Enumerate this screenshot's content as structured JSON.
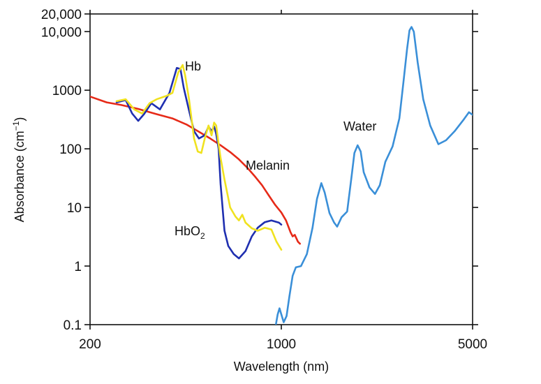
{
  "chart_data": {
    "type": "line",
    "title": "",
    "xlabel": "Wavelength (nm)",
    "ylabel": "Absorbance (cm⁻¹)",
    "x_scale": "log",
    "y_scale": "log",
    "xlim": [
      200,
      5000
    ],
    "ylim": [
      0.1,
      20000
    ],
    "grid": false,
    "legend": "none",
    "x_ticks": [
      {
        "value": 200,
        "label": "200"
      },
      {
        "value": 1000,
        "label": "1000"
      },
      {
        "value": 5000,
        "label": "5000"
      }
    ],
    "y_ticks": [
      {
        "value": 0.1,
        "label": "0.1"
      },
      {
        "value": 1,
        "label": "1"
      },
      {
        "value": 10,
        "label": "10"
      },
      {
        "value": 100,
        "label": "100"
      },
      {
        "value": 1000,
        "label": "1000"
      },
      {
        "value": 10000,
        "label": "10,000"
      },
      {
        "value": 20000,
        "label": "20,000"
      }
    ],
    "series": [
      {
        "name": "Water",
        "color": "#3a8fd8",
        "points": [
          [
            940,
            0.07
          ],
          [
            955,
            0.1
          ],
          [
            970,
            0.15
          ],
          [
            985,
            0.19
          ],
          [
            1000,
            0.15
          ],
          [
            1020,
            0.11
          ],
          [
            1045,
            0.14
          ],
          [
            1070,
            0.3
          ],
          [
            1100,
            0.68
          ],
          [
            1130,
            0.95
          ],
          [
            1180,
            1.0
          ],
          [
            1240,
            1.6
          ],
          [
            1300,
            4.5
          ],
          [
            1350,
            14
          ],
          [
            1400,
            26
          ],
          [
            1440,
            18
          ],
          [
            1500,
            8
          ],
          [
            1560,
            5.5
          ],
          [
            1600,
            4.7
          ],
          [
            1660,
            6.8
          ],
          [
            1740,
            8.5
          ],
          [
            1800,
            30
          ],
          [
            1850,
            85
          ],
          [
            1900,
            115
          ],
          [
            1950,
            90
          ],
          [
            2000,
            40
          ],
          [
            2100,
            22
          ],
          [
            2200,
            17
          ],
          [
            2290,
            24
          ],
          [
            2400,
            60
          ],
          [
            2550,
            110
          ],
          [
            2700,
            330
          ],
          [
            2800,
            1500
          ],
          [
            2880,
            5000
          ],
          [
            2940,
            10500
          ],
          [
            2990,
            12000
          ],
          [
            3050,
            10000
          ],
          [
            3150,
            3000
          ],
          [
            3300,
            700
          ],
          [
            3500,
            250
          ],
          [
            3750,
            120
          ],
          [
            4000,
            140
          ],
          [
            4300,
            200
          ],
          [
            4650,
            320
          ],
          [
            4850,
            420
          ],
          [
            5000,
            380
          ]
        ]
      },
      {
        "name": "Hb",
        "color": "#1f2fb0",
        "points": [
          [
            250,
            620
          ],
          [
            270,
            680
          ],
          [
            285,
            400
          ],
          [
            300,
            300
          ],
          [
            315,
            390
          ],
          [
            335,
            600
          ],
          [
            360,
            470
          ],
          [
            390,
            900
          ],
          [
            415,
            2400
          ],
          [
            428,
            2300
          ],
          [
            440,
            1100
          ],
          [
            460,
            450
          ],
          [
            480,
            200
          ],
          [
            500,
            150
          ],
          [
            525,
            170
          ],
          [
            542,
            240
          ],
          [
            556,
            200
          ],
          [
            568,
            240
          ],
          [
            578,
            180
          ],
          [
            590,
            100
          ],
          [
            600,
            25
          ],
          [
            620,
            4
          ],
          [
            640,
            2.2
          ],
          [
            670,
            1.6
          ],
          [
            700,
            1.35
          ],
          [
            740,
            1.8
          ],
          [
            780,
            3.2
          ],
          [
            820,
            4.5
          ],
          [
            870,
            5.6
          ],
          [
            920,
            6.0
          ],
          [
            980,
            5.5
          ],
          [
            1000,
            5.1
          ]
        ]
      },
      {
        "name": "HbO₂",
        "color": "#f0e220",
        "points": [
          [
            250,
            650
          ],
          [
            270,
            700
          ],
          [
            290,
            470
          ],
          [
            310,
            400
          ],
          [
            330,
            600
          ],
          [
            350,
            700
          ],
          [
            380,
            800
          ],
          [
            400,
            900
          ],
          [
            420,
            2000
          ],
          [
            436,
            2700
          ],
          [
            445,
            1800
          ],
          [
            460,
            700
          ],
          [
            480,
            150
          ],
          [
            495,
            90
          ],
          [
            510,
            85
          ],
          [
            525,
            150
          ],
          [
            542,
            250
          ],
          [
            556,
            170
          ],
          [
            568,
            280
          ],
          [
            578,
            250
          ],
          [
            590,
            120
          ],
          [
            600,
            70
          ],
          [
            620,
            30
          ],
          [
            650,
            10
          ],
          [
            680,
            7
          ],
          [
            700,
            6
          ],
          [
            720,
            7.5
          ],
          [
            740,
            5.5
          ],
          [
            780,
            4.4
          ],
          [
            820,
            4.0
          ],
          [
            870,
            4.5
          ],
          [
            920,
            4.2
          ],
          [
            960,
            2.6
          ],
          [
            1000,
            1.9
          ]
        ]
      },
      {
        "name": "Melanin",
        "color": "#e62a18",
        "points": [
          [
            200,
            780
          ],
          [
            230,
            620
          ],
          [
            260,
            560
          ],
          [
            300,
            480
          ],
          [
            350,
            390
          ],
          [
            400,
            330
          ],
          [
            450,
            260
          ],
          [
            500,
            195
          ],
          [
            550,
            150
          ],
          [
            600,
            115
          ],
          [
            650,
            88
          ],
          [
            700,
            66
          ],
          [
            750,
            48
          ],
          [
            800,
            34
          ],
          [
            850,
            24
          ],
          [
            900,
            16
          ],
          [
            950,
            11
          ],
          [
            1000,
            8.2
          ],
          [
            1040,
            6
          ],
          [
            1080,
            3.8
          ],
          [
            1100,
            3.2
          ],
          [
            1120,
            3.4
          ],
          [
            1150,
            2.6
          ],
          [
            1170,
            2.4
          ]
        ]
      }
    ],
    "annotations": [
      {
        "text": "Hb",
        "target_series": "Hb"
      },
      {
        "text": "HbO2",
        "target_series": "HbO₂"
      },
      {
        "text": "Melanin",
        "target_series": "Melanin"
      },
      {
        "text": "Water",
        "target_series": "Water"
      }
    ]
  }
}
